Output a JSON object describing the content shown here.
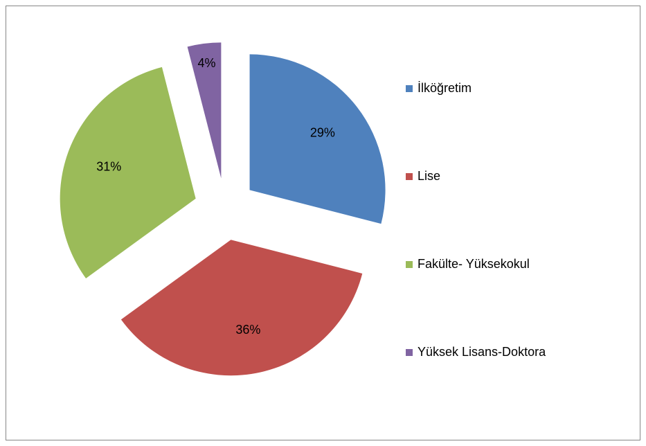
{
  "chart_data": {
    "type": "pie",
    "categories": [
      "İlköğretim",
      "Lise",
      "Fakülte- Yüksekokul",
      "Yüksek Lisans-Doktora"
    ],
    "values": [
      29,
      36,
      31,
      4
    ],
    "value_labels": [
      "29%",
      "36%",
      "31%",
      "4%"
    ],
    "colors": [
      "#4f81bd",
      "#c0504d",
      "#9bbb59",
      "#8064a2"
    ],
    "legend": "right"
  }
}
